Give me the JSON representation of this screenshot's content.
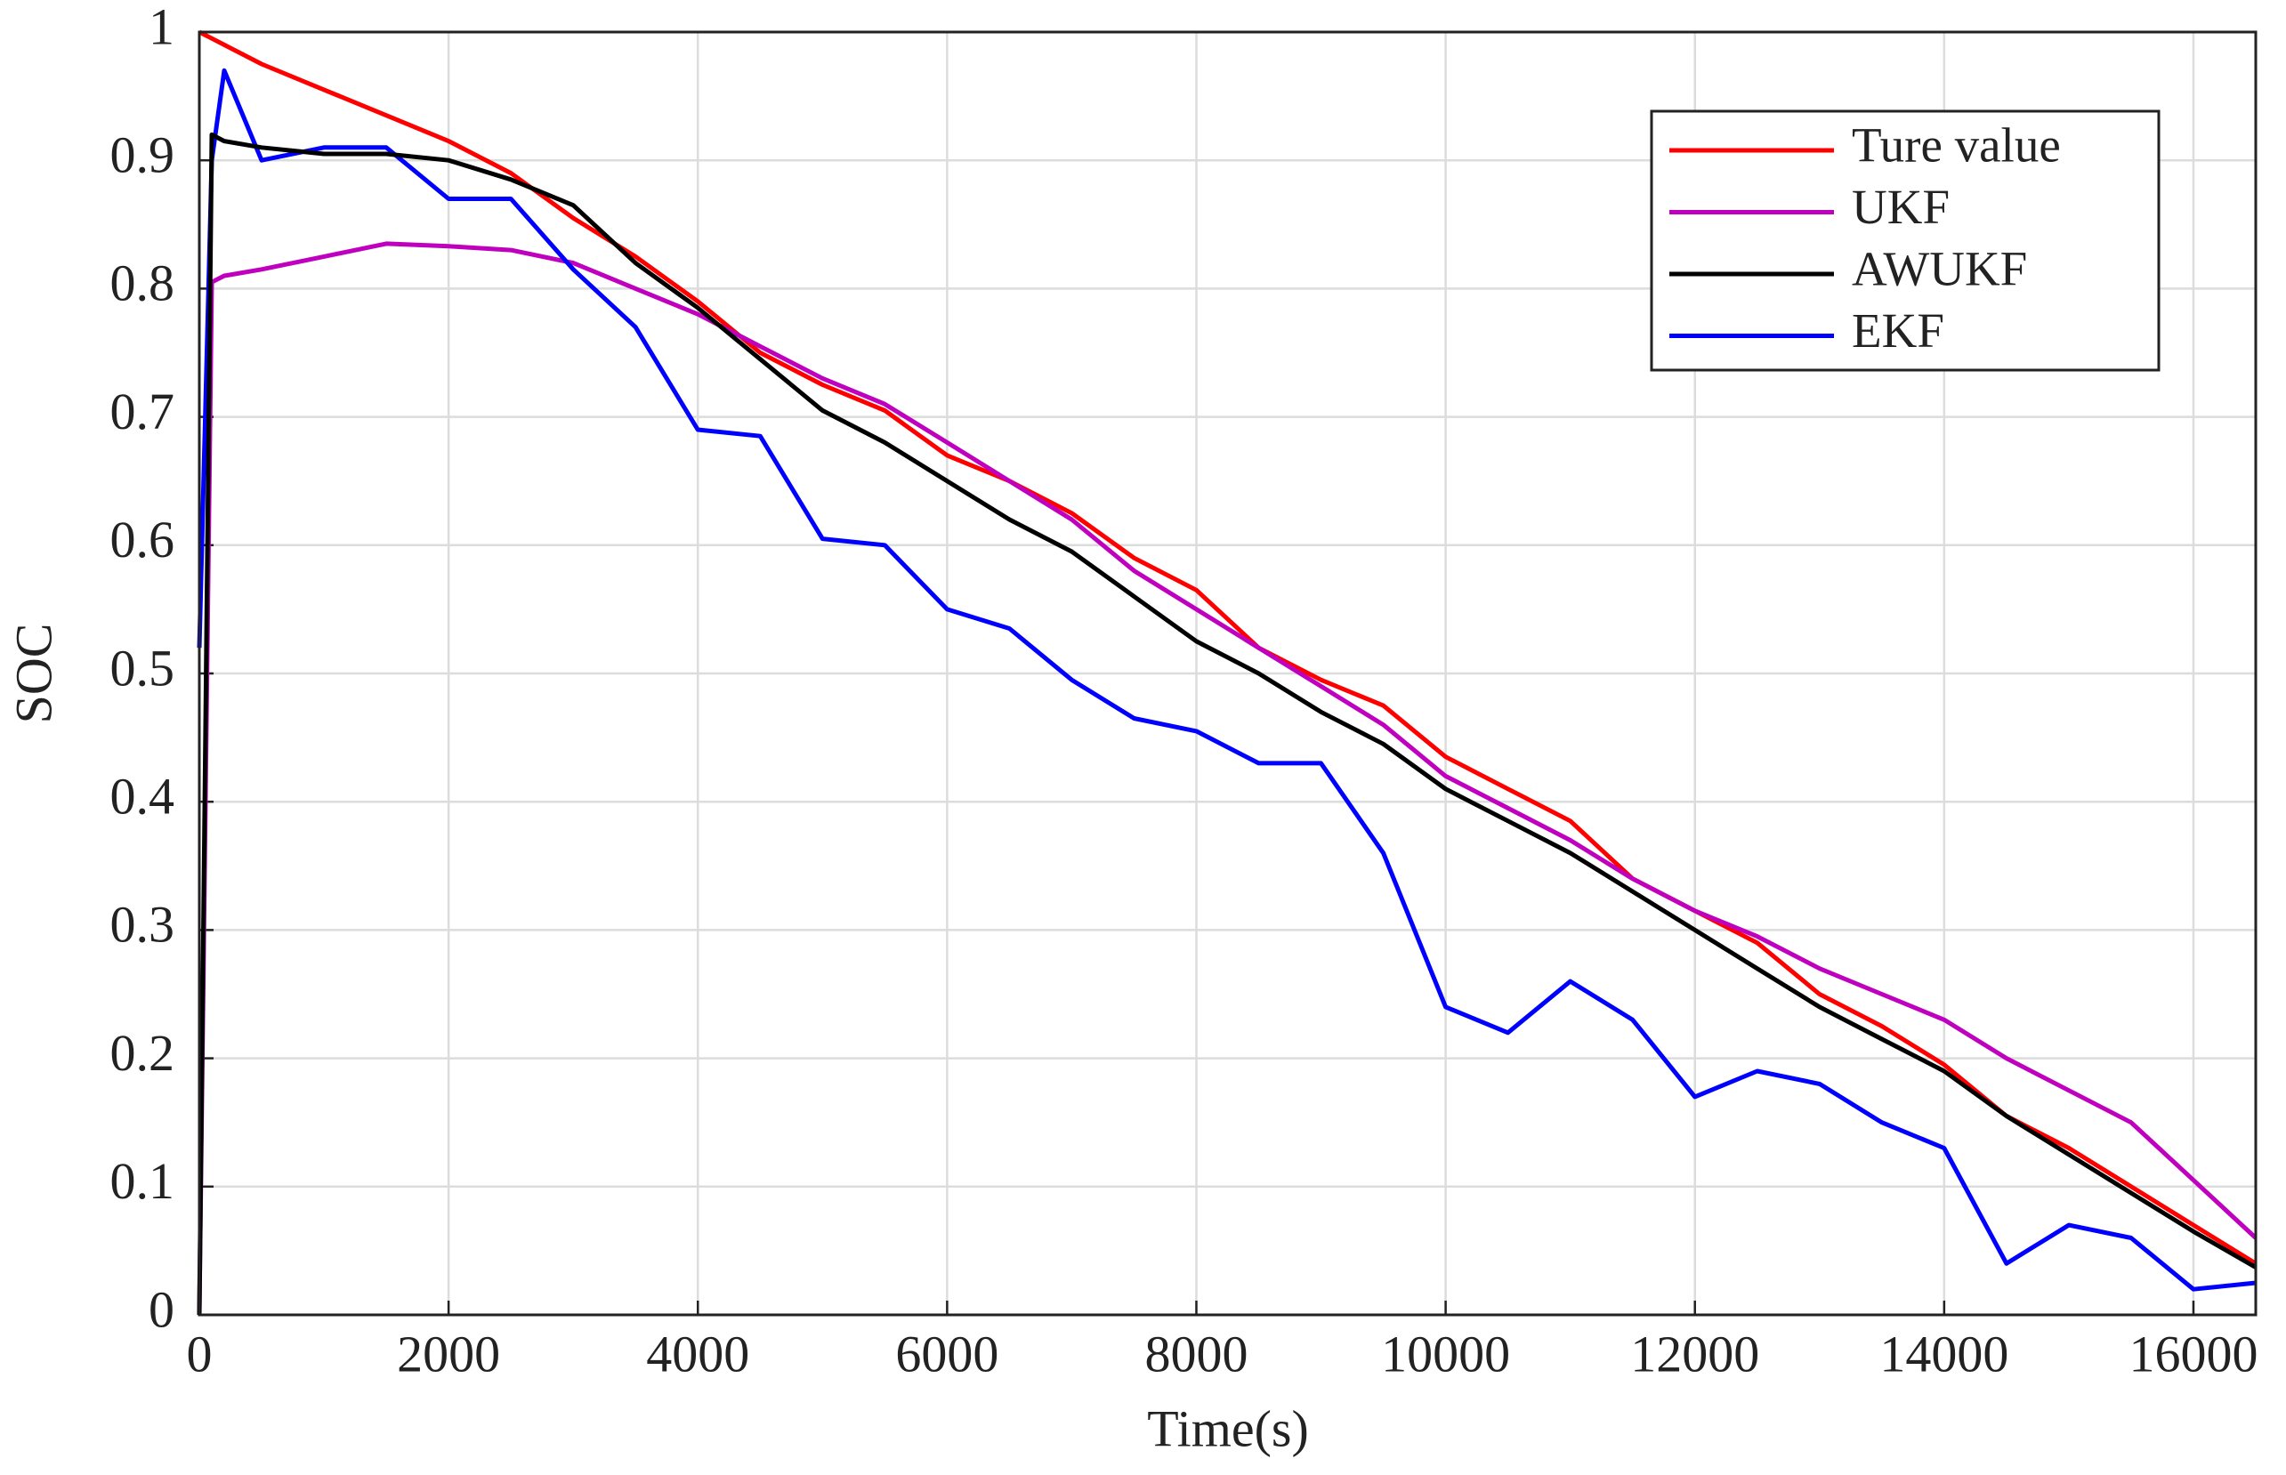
{
  "chart_data": {
    "type": "line",
    "x_label": "Time(s)",
    "y_label": "SOC",
    "x": [
      0,
      100,
      200,
      500,
      1000,
      1500,
      2000,
      2500,
      3000,
      3500,
      4000,
      4500,
      5000,
      5500,
      6000,
      6500,
      7000,
      7500,
      8000,
      8500,
      9000,
      9500,
      10000,
      10500,
      11000,
      11500,
      12000,
      12500,
      13000,
      13500,
      14000,
      14500,
      15000,
      15500,
      16000,
      16500
    ],
    "series": [
      {
        "name": "Ture value",
        "color": "#ff0000",
        "values": [
          1.0,
          0.995,
          0.99,
          0.975,
          0.955,
          0.935,
          0.915,
          0.89,
          0.855,
          0.825,
          0.79,
          0.75,
          0.725,
          0.705,
          0.67,
          0.65,
          0.625,
          0.59,
          0.565,
          0.52,
          0.495,
          0.475,
          0.435,
          0.41,
          0.385,
          0.34,
          0.315,
          0.29,
          0.25,
          0.225,
          0.195,
          0.155,
          0.13,
          0.1,
          0.07,
          0.04
        ]
      },
      {
        "name": "UKF",
        "color": "#bf00bf",
        "values": [
          0,
          0.805,
          0.81,
          0.815,
          0.825,
          0.835,
          0.833,
          0.83,
          0.82,
          0.8,
          0.78,
          0.755,
          0.73,
          0.71,
          0.68,
          0.65,
          0.62,
          0.58,
          0.55,
          0.52,
          0.49,
          0.46,
          0.42,
          0.395,
          0.37,
          0.34,
          0.315,
          0.295,
          0.27,
          0.25,
          0.23,
          0.2,
          0.175,
          0.15,
          0.105,
          0.06
        ]
      },
      {
        "name": "AWUKF",
        "color": "#000000",
        "values": [
          0,
          0.92,
          0.915,
          0.91,
          0.905,
          0.905,
          0.9,
          0.885,
          0.865,
          0.82,
          0.785,
          0.745,
          0.705,
          0.68,
          0.65,
          0.62,
          0.595,
          0.56,
          0.525,
          0.5,
          0.47,
          0.445,
          0.41,
          0.385,
          0.36,
          0.33,
          0.3,
          0.27,
          0.24,
          0.215,
          0.19,
          0.155,
          0.125,
          0.095,
          0.065,
          0.037
        ]
      },
      {
        "name": "EKF",
        "color": "#0000ff",
        "values": [
          0.52,
          0.9,
          0.97,
          0.9,
          0.91,
          0.91,
          0.87,
          0.87,
          0.815,
          0.77,
          0.69,
          0.685,
          0.605,
          0.6,
          0.55,
          0.535,
          0.495,
          0.465,
          0.455,
          0.43,
          0.43,
          0.36,
          0.24,
          0.22,
          0.26,
          0.23,
          0.17,
          0.19,
          0.18,
          0.15,
          0.13,
          0.04,
          0.07,
          0.06,
          0.02,
          0.025
        ]
      }
    ],
    "xlim": [
      0,
      16500
    ],
    "xticks": [
      0,
      2000,
      4000,
      6000,
      8000,
      10000,
      12000,
      14000,
      16000
    ],
    "ylim": [
      0,
      1
    ],
    "yticks": [
      0,
      0.1,
      0.2,
      0.3,
      0.4,
      0.5,
      0.6,
      0.7,
      0.8,
      0.9,
      1
    ],
    "grid": true,
    "legend": "top-right"
  }
}
